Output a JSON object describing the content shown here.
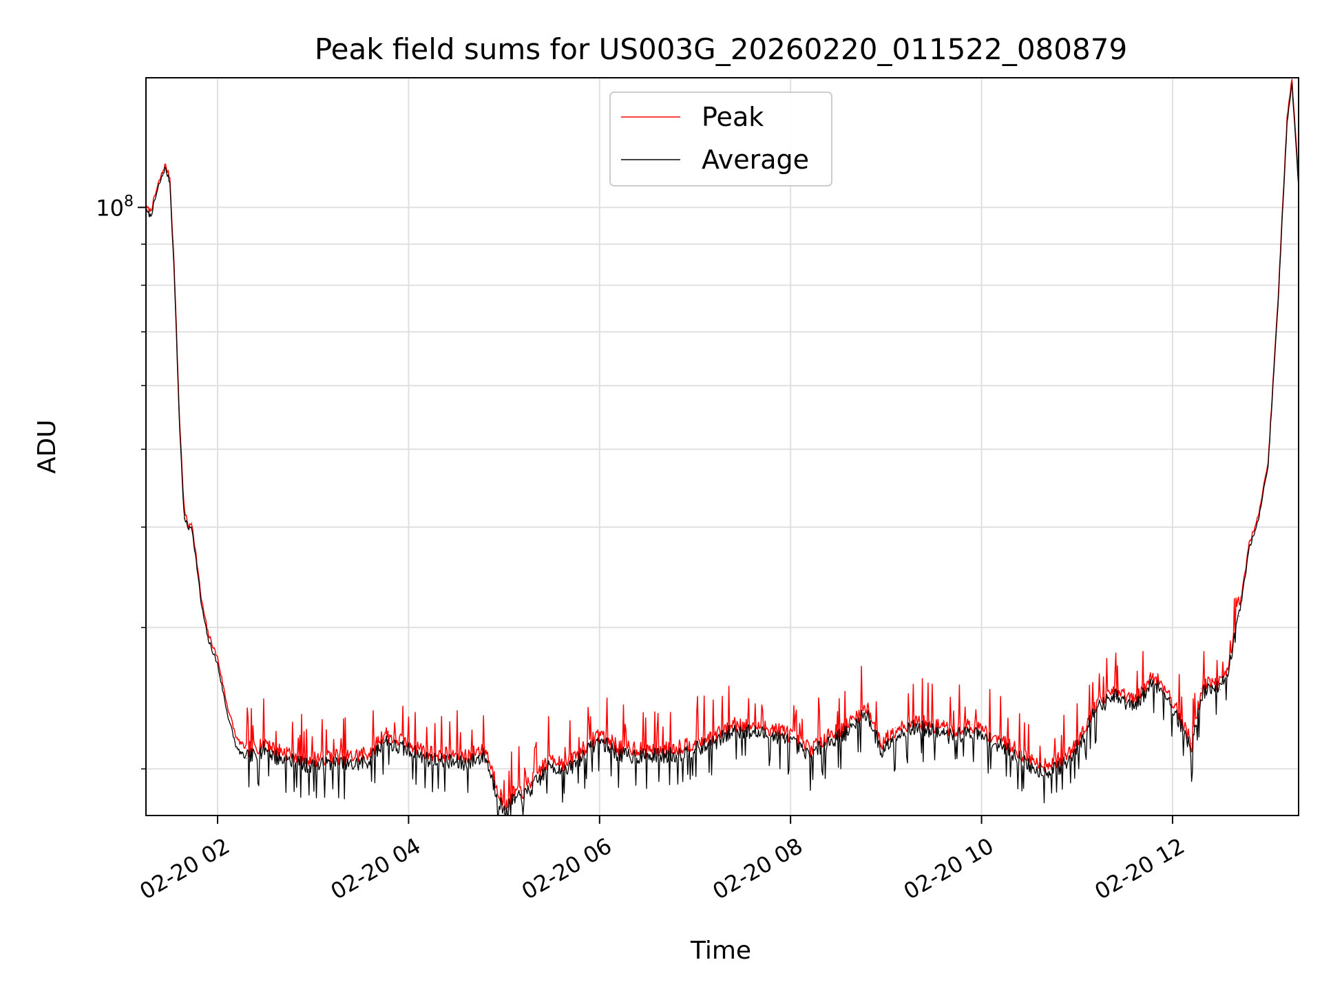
{
  "chart_data": {
    "type": "line",
    "title": "Peak field sums for US003G_20260220_011522_080879",
    "xlabel": "Time",
    "ylabel": "ADU",
    "yscale": "log",
    "ylim": [
      17500000,
      145000000
    ],
    "xlim_hours": [
      1.25,
      13.32
    ],
    "x_tick_hours": [
      2,
      4,
      6,
      8,
      10,
      12
    ],
    "x_tick_labels": [
      "02-20 02",
      "02-20 04",
      "02-20 06",
      "02-20 08",
      "02-20 10",
      "02-20 12"
    ],
    "y_major_ticks": [
      100000000
    ],
    "y_major_tick_label_base": "10",
    "y_major_tick_label_exp": "8",
    "y_minor_ticks": [
      20000000,
      30000000,
      40000000,
      50000000,
      60000000,
      70000000,
      80000000,
      90000000
    ],
    "grid": true,
    "legend_position": "upper center",
    "series": [
      {
        "name": "Peak",
        "color": "#ff0000",
        "x_hours": [
          1.25,
          1.3,
          1.38,
          1.45,
          1.5,
          1.55,
          1.6,
          1.65,
          1.7,
          1.73,
          1.78,
          1.83,
          1.9,
          2.0,
          2.1,
          2.2,
          2.3,
          2.4,
          2.5,
          2.6,
          2.7,
          2.8,
          2.9,
          3.0,
          3.2,
          3.4,
          3.6,
          3.75,
          3.85,
          4.0,
          4.2,
          4.4,
          4.6,
          4.8,
          4.9,
          5.0,
          5.1,
          5.2,
          5.35,
          5.5,
          5.65,
          5.8,
          6.0,
          6.2,
          6.5,
          6.8,
          7.0,
          7.2,
          7.4,
          7.6,
          7.8,
          8.0,
          8.2,
          8.4,
          8.6,
          8.8,
          8.95,
          9.1,
          9.3,
          9.5,
          9.7,
          9.9,
          10.1,
          10.3,
          10.5,
          10.7,
          10.9,
          11.0,
          11.2,
          11.4,
          11.6,
          11.8,
          11.95,
          12.1,
          12.2,
          12.3,
          12.4,
          12.5,
          12.6,
          12.7,
          12.8,
          12.9,
          13.0,
          13.1,
          13.2,
          13.25,
          13.32
        ],
        "values": [
          100000000,
          99000000,
          107000000,
          113000000,
          109000000,
          82000000,
          55000000,
          42000000,
          40000000,
          40500000,
          36500000,
          32500000,
          29500000,
          27500000,
          24000000,
          21800000,
          21200000,
          21300000,
          21700000,
          21200000,
          21000000,
          20900000,
          20700000,
          20600000,
          20800000,
          20700000,
          21000000,
          22200000,
          21800000,
          21600000,
          21000000,
          20900000,
          20800000,
          21300000,
          19500000,
          18000000,
          18700000,
          18800000,
          19800000,
          20700000,
          20300000,
          21100000,
          22200000,
          21300000,
          21200000,
          21300000,
          21600000,
          22000000,
          22800000,
          22700000,
          22500000,
          22100000,
          21200000,
          22100000,
          22700000,
          24000000,
          21500000,
          22500000,
          23000000,
          22700000,
          22400000,
          22700000,
          22100000,
          21500000,
          20600000,
          20300000,
          20800000,
          21700000,
          24200000,
          25100000,
          24300000,
          26200000,
          25000000,
          23000000,
          21500000,
          25200000,
          25800000,
          25600000,
          27500000,
          31500000,
          38000000,
          41500000,
          48000000,
          75000000,
          130000000,
          145000000,
          108000000
        ]
      },
      {
        "name": "Average",
        "color": "#000000",
        "x_hours": [
          1.25,
          1.3,
          1.38,
          1.45,
          1.5,
          1.55,
          1.6,
          1.65,
          1.7,
          1.73,
          1.78,
          1.83,
          1.9,
          2.0,
          2.1,
          2.2,
          2.3,
          2.4,
          2.5,
          2.6,
          2.7,
          2.8,
          2.9,
          3.0,
          3.2,
          3.4,
          3.6,
          3.75,
          3.85,
          4.0,
          4.2,
          4.4,
          4.6,
          4.8,
          4.9,
          5.0,
          5.1,
          5.2,
          5.35,
          5.5,
          5.65,
          5.8,
          6.0,
          6.2,
          6.5,
          6.8,
          7.0,
          7.2,
          7.4,
          7.6,
          7.8,
          8.0,
          8.2,
          8.4,
          8.6,
          8.8,
          8.95,
          9.1,
          9.3,
          9.5,
          9.7,
          9.9,
          10.1,
          10.3,
          10.5,
          10.7,
          10.9,
          11.0,
          11.2,
          11.4,
          11.6,
          11.8,
          11.95,
          12.1,
          12.2,
          12.3,
          12.4,
          12.5,
          12.6,
          12.7,
          12.8,
          12.9,
          13.0,
          13.1,
          13.2,
          13.25,
          13.32
        ],
        "values": [
          99000000,
          97500000,
          106000000,
          112000000,
          107500000,
          80500000,
          54000000,
          41000000,
          39800000,
          40000000,
          36000000,
          32000000,
          29000000,
          27000000,
          23500000,
          21200000,
          20600000,
          20800000,
          21200000,
          20700000,
          20500000,
          20400000,
          20200000,
          20100000,
          20300000,
          20200000,
          20500000,
          21700000,
          21300000,
          21100000,
          20500000,
          20400000,
          20300000,
          20800000,
          19000000,
          17600000,
          18300000,
          18400000,
          19300000,
          20200000,
          19800000,
          20600000,
          21700000,
          20800000,
          20700000,
          20800000,
          21100000,
          21500000,
          22300000,
          22200000,
          22000000,
          21600000,
          20700000,
          21600000,
          22200000,
          23500000,
          21000000,
          22000000,
          22500000,
          22200000,
          21900000,
          22200000,
          21600000,
          21000000,
          20100000,
          19800000,
          20300000,
          21200000,
          23700000,
          24600000,
          23800000,
          25700000,
          24500000,
          22500000,
          21000000,
          24700000,
          25300000,
          25100000,
          27000000,
          31000000,
          37500000,
          41000000,
          47500000,
          74000000,
          128000000,
          143000000,
          106000000
        ]
      }
    ]
  }
}
